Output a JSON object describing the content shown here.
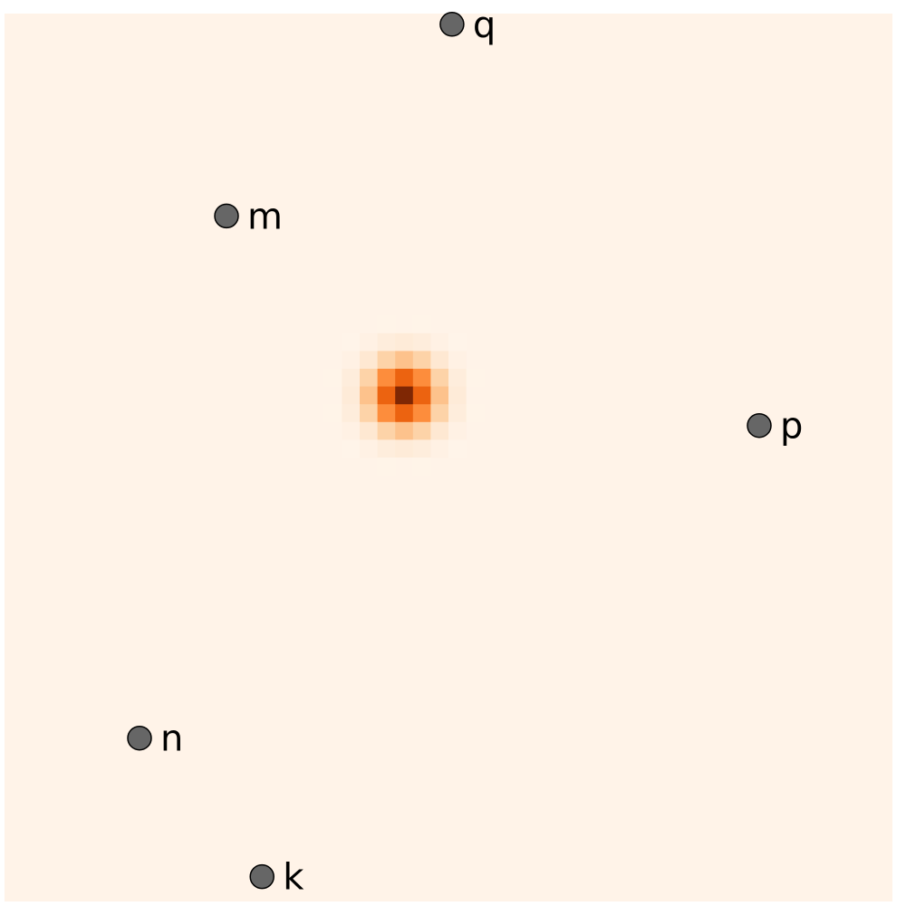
{
  "chart_data": {
    "type": "heatmap",
    "title": "",
    "xlabel": "",
    "ylabel": "",
    "grid": false,
    "colormap": "Oranges",
    "colors": {
      "background": "#fff3e8",
      "low": "#fff5eb",
      "high": "#7f2704",
      "marker": "#666666",
      "marker_edge": "#000000"
    },
    "grid_size": 50,
    "hotspot": {
      "center_col": 22,
      "center_row": 21,
      "sigma": 1.4,
      "peak": 1.0
    },
    "points": [
      {
        "label": "q",
        "col": 25.2,
        "row": 0.6
      },
      {
        "label": "m",
        "col": 12.5,
        "row": 11.4
      },
      {
        "label": "p",
        "col": 42.5,
        "row": 23.2
      },
      {
        "label": "n",
        "col": 7.6,
        "row": 40.8
      },
      {
        "label": "k",
        "col": 14.5,
        "row": 48.6
      }
    ]
  }
}
